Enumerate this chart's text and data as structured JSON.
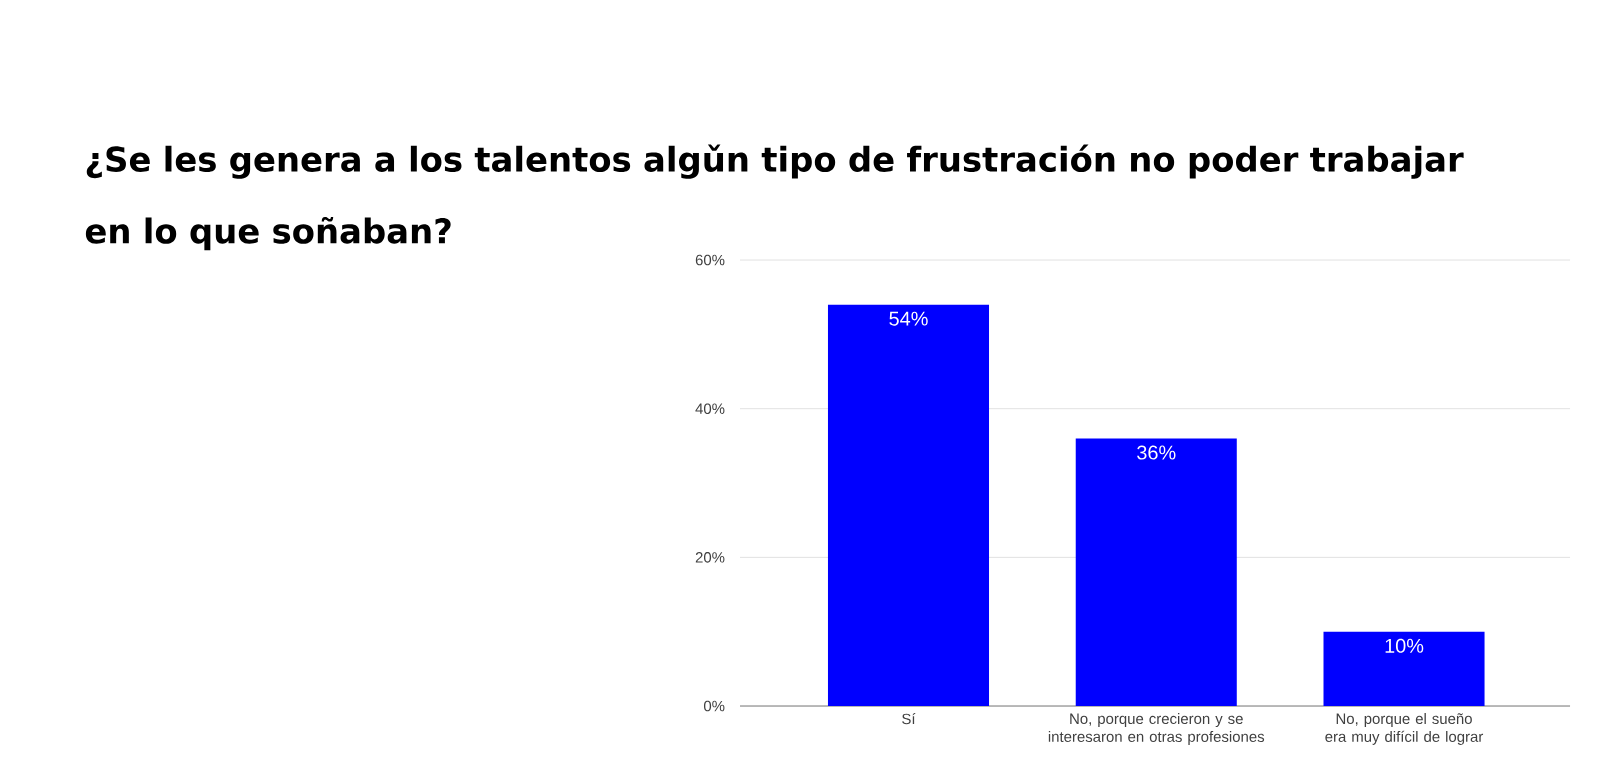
{
  "chart_data": {
    "type": "bar",
    "title": "¿Se les genera a los talentos algǔn tipo de frustración no poder trabajar en lo que soñaban?",
    "categories": [
      "Sí",
      "No, porque crecieron y se interesaron en otras profesiones",
      "No, porque el sueño era muy difícil de lograr"
    ],
    "values": [
      54,
      36,
      10
    ],
    "color": "#0000ff",
    "value_labels": [
      "54%",
      "36%",
      "10%"
    ],
    "ylim": [
      0,
      60
    ],
    "yticks": [
      {
        "value": 0,
        "label": "0%"
      },
      {
        "value": 20,
        "label": "20%"
      },
      {
        "value": 40,
        "label": "40%"
      },
      {
        "value": 60,
        "label": "60%"
      }
    ],
    "grid": "y"
  }
}
